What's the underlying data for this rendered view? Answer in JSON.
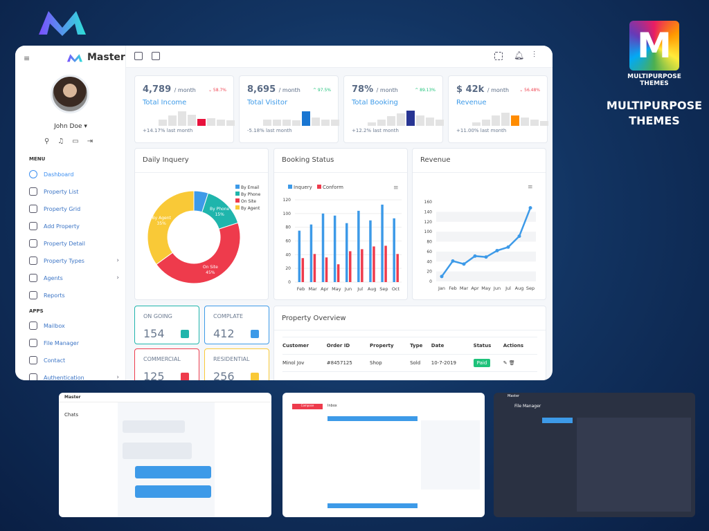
{
  "brand": {
    "name": "Master",
    "corner_logo_text": "MULTIPURPOSE THEMES",
    "corner_caption": "MULTIPURPOSE THEMES"
  },
  "sidebar": {
    "user": "John Doe ▾",
    "menu_heading": "MENU",
    "apps_heading": "APPS",
    "menu": [
      {
        "label": "Dashboard",
        "icon": "compass-icon",
        "active": true
      },
      {
        "label": "Property List",
        "icon": "list-icon"
      },
      {
        "label": "Property Grid",
        "icon": "grid-icon"
      },
      {
        "label": "Add Property",
        "icon": "award-icon"
      },
      {
        "label": "Property Detail",
        "icon": "file-icon"
      },
      {
        "label": "Property Types",
        "icon": "home-icon",
        "chevron": true
      },
      {
        "label": "Agents",
        "icon": "users-icon",
        "chevron": true
      },
      {
        "label": "Reports",
        "icon": "pie-chart-icon"
      }
    ],
    "apps": [
      {
        "label": "Mailbox",
        "icon": "mail-icon"
      },
      {
        "label": "File Manager",
        "icon": "file-plus-icon"
      },
      {
        "label": "Contact",
        "icon": "phone-icon"
      },
      {
        "label": "Authentication",
        "icon": "alert-icon",
        "chevron": true
      }
    ]
  },
  "stats": [
    {
      "value": "4,789",
      "unit": "/ month",
      "change": "⌄ 58.7%",
      "change_color": "#ef3f4d",
      "title": "Total Income",
      "footer": "+14.17% last month",
      "bars": [
        0.4,
        0.7,
        0.95,
        0.75,
        0.45,
        0.5,
        0.4,
        0.35
      ],
      "highlight": 4,
      "color": "#e8123c"
    },
    {
      "value": "8,695",
      "unit": "/ month",
      "change": "^ 97.5%",
      "change_color": "#1ec27a",
      "title": "Total Visitor",
      "footer": "-5.18% last month",
      "bars": [
        0.4,
        0.4,
        0.4,
        0.35,
        0.95,
        0.55,
        0.4,
        0.4
      ],
      "highlight": 4,
      "color": "#1976d2"
    },
    {
      "value": "78%",
      "unit": "/ month",
      "change": "^ 89.13%",
      "change_color": "#1ec27a",
      "title": "Total Booking",
      "footer": "+12.2% last month",
      "bars": [
        0.25,
        0.4,
        0.65,
        0.8,
        1,
        0.7,
        0.55,
        0.4
      ],
      "highlight": 4,
      "color": "#283593"
    },
    {
      "value": "$ 42k",
      "unit": "/ month",
      "change": "⌄ 56.48%",
      "change_color": "#ef3f4d",
      "title": "Revenue",
      "footer": "+11.00% last month",
      "bars": [
        0.25,
        0.4,
        0.7,
        0.85,
        0.7,
        0.55,
        0.4,
        0.3
      ],
      "highlight": 4,
      "color": "#ff8c00"
    }
  ],
  "chart_data": [
    {
      "type": "pie",
      "title": "Daily Inquery",
      "donut": true,
      "legend_position": "top-right",
      "categories": [
        "By Email",
        "By Phone",
        "On Site",
        "By Agent"
      ],
      "values": [
        5,
        15,
        45,
        35
      ],
      "colors": [
        "#3d9ae8",
        "#1fb5ac",
        "#ee3b4c",
        "#f9c937"
      ],
      "labels": [
        "",
        "By Phone 15%",
        "On Site 45%",
        "By Agent 35%"
      ]
    },
    {
      "type": "bar",
      "title": "Booking Status",
      "legend_position": "top-left",
      "categories": [
        "Feb",
        "Mar",
        "Apr",
        "May",
        "Jun",
        "Jul",
        "Aug",
        "Sep",
        "Oct"
      ],
      "ylim": [
        0,
        120
      ],
      "yticks": [
        0,
        20,
        40,
        60,
        80,
        100,
        120
      ],
      "series": [
        {
          "name": "Inquery",
          "color": "#3d9ae8",
          "values": [
            75,
            84,
            100,
            97,
            86,
            104,
            90,
            113,
            93
          ]
        },
        {
          "name": "Conform",
          "color": "#ee3b4c",
          "values": [
            35,
            41,
            36,
            26,
            45,
            48,
            52,
            53,
            41
          ]
        }
      ]
    },
    {
      "type": "line",
      "title": "Revenue",
      "categories": [
        "Jan",
        "Feb",
        "Mar",
        "Apr",
        "May",
        "Jun",
        "Jul",
        "Aug",
        "Sep"
      ],
      "ylim": [
        0,
        160
      ],
      "yticks": [
        0,
        20,
        40,
        60,
        80,
        100,
        120,
        140,
        160
      ],
      "series": [
        {
          "color": "#3d9ae8",
          "values": [
            10,
            41,
            35,
            51,
            49,
            62,
            69,
            91,
            148
          ]
        }
      ]
    }
  ],
  "minis": [
    {
      "label": "ON GOING",
      "value": "154",
      "color": "#1fb5ac",
      "icon": "building-icon"
    },
    {
      "label": "COMPLATE",
      "value": "412",
      "color": "#3d9ae8",
      "icon": "award-icon"
    },
    {
      "label": "COMMERCIAL",
      "value": "125",
      "color": "#ee3b4c",
      "icon": "building-icon"
    },
    {
      "label": "RESIDENTIAL",
      "value": "256",
      "color": "#f9c937",
      "icon": "home-icon"
    }
  ],
  "overview": {
    "title": "Property Overview",
    "columns": [
      "Customer",
      "Order ID",
      "Property",
      "Type",
      "Date",
      "Status",
      "Actions"
    ],
    "rows": [
      {
        "customer": "Minol Jov",
        "order": "#8457125",
        "property": "Shop",
        "type": "Sold",
        "date": "10-7-2019",
        "status": "Paid"
      }
    ]
  },
  "thumbnails": [
    {
      "title": "Chats",
      "header": "Master"
    },
    {
      "title": "Inbox",
      "header": "Compose"
    },
    {
      "title": "File Manager",
      "header": "Master"
    }
  ]
}
